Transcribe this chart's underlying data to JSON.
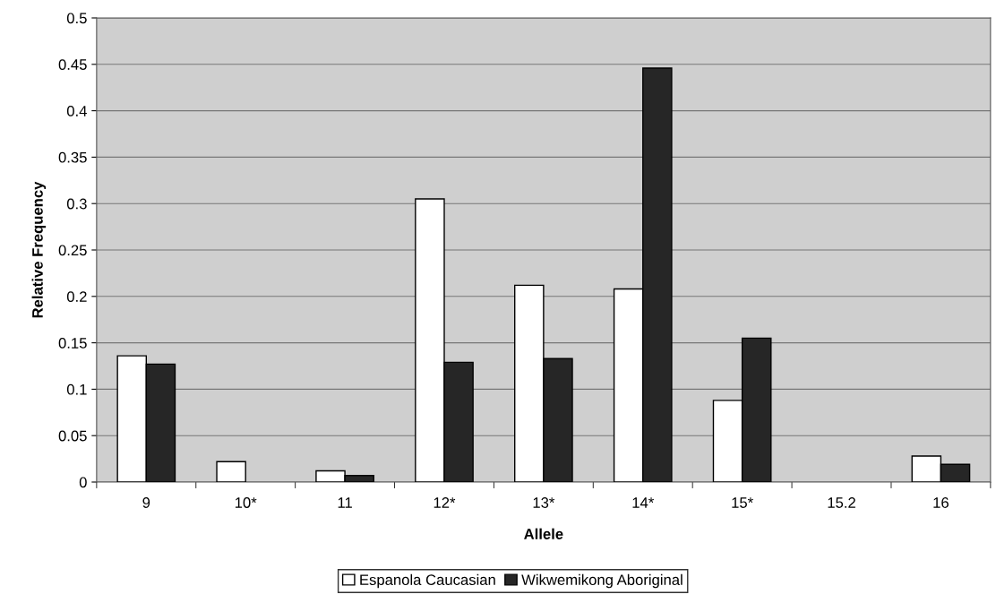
{
  "chart_data": {
    "type": "bar",
    "xlabel": "Allele",
    "ylabel": "Relative Frequency",
    "categories": [
      "9",
      "10*",
      "11",
      "12*",
      "13*",
      "14*",
      "15*",
      "15.2",
      "16"
    ],
    "series": [
      {
        "name": "Espanola Caucasian",
        "color": "#ffffff",
        "values": [
          0.136,
          0.022,
          0.012,
          0.305,
          0.212,
          0.208,
          0.088,
          null,
          0.028
        ]
      },
      {
        "name": "Wikwemikong Aboriginal",
        "color": "#262626",
        "values": [
          0.127,
          null,
          0.007,
          0.129,
          0.133,
          0.446,
          0.155,
          null,
          0.019
        ]
      }
    ],
    "ylim": [
      0,
      0.5
    ],
    "yticks": [
      0,
      0.05,
      0.1,
      0.15,
      0.2,
      0.25,
      0.3,
      0.35,
      0.4,
      0.45,
      0.5
    ],
    "grid": "y",
    "legend": "bottom"
  }
}
